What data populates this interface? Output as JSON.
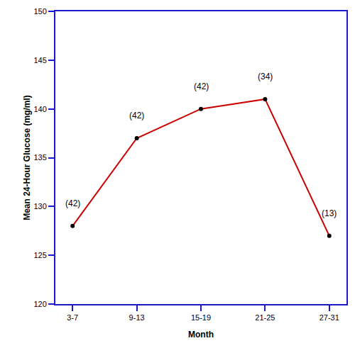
{
  "chart_data": {
    "type": "line",
    "x_label": "Month",
    "y_label": "Mean 24-Hour Glucose (mg/ml)",
    "categories": [
      "3-7",
      "9-13",
      "15-19",
      "21-25",
      "27-31"
    ],
    "values": [
      128,
      137,
      140,
      141,
      127
    ],
    "color": "#cc0000",
    "marker": "circle",
    "ylim": [
      120,
      150
    ],
    "yticks": [
      120,
      125,
      130,
      135,
      140,
      145,
      150
    ],
    "grid": false,
    "annotations": [
      {
        "category": "3-7",
        "text": "(42)"
      },
      {
        "category": "9-13",
        "text": "(42)"
      },
      {
        "category": "15-19",
        "text": "(42)"
      },
      {
        "category": "21-25",
        "text": "(34)"
      },
      {
        "category": "27-31",
        "text": "(13)"
      }
    ]
  }
}
